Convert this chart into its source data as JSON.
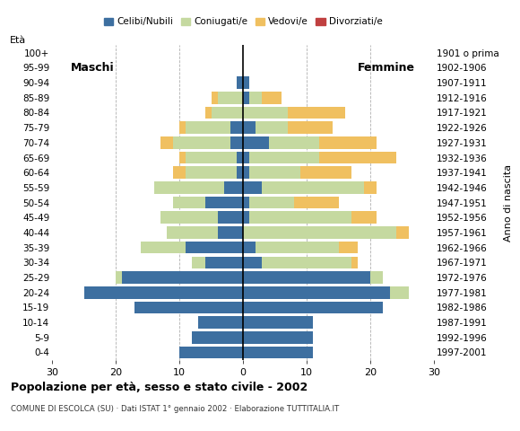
{
  "age_groups": [
    "0-4",
    "5-9",
    "10-14",
    "15-19",
    "20-24",
    "25-29",
    "30-34",
    "35-39",
    "40-44",
    "45-49",
    "50-54",
    "55-59",
    "60-64",
    "65-69",
    "70-74",
    "75-79",
    "80-84",
    "85-89",
    "90-94",
    "95-99",
    "100+"
  ],
  "birth_years": [
    "1997-2001",
    "1992-1996",
    "1987-1991",
    "1982-1986",
    "1977-1981",
    "1972-1976",
    "1967-1971",
    "1962-1966",
    "1957-1961",
    "1952-1956",
    "1947-1951",
    "1942-1946",
    "1937-1941",
    "1932-1936",
    "1927-1931",
    "1922-1926",
    "1917-1921",
    "1912-1916",
    "1907-1911",
    "1902-1906",
    "1901 o prima"
  ],
  "males": {
    "celibe": [
      10,
      8,
      7,
      17,
      25,
      19,
      6,
      9,
      4,
      4,
      6,
      3,
      1,
      1,
      2,
      2,
      0,
      0,
      1,
      0,
      0
    ],
    "coniugato": [
      0,
      0,
      0,
      0,
      0,
      1,
      2,
      7,
      8,
      9,
      5,
      11,
      8,
      8,
      9,
      7,
      5,
      4,
      0,
      0,
      0
    ],
    "vedovo": [
      0,
      0,
      0,
      0,
      0,
      0,
      0,
      0,
      0,
      0,
      0,
      0,
      2,
      1,
      2,
      1,
      1,
      1,
      0,
      0,
      0
    ],
    "divorziato": [
      0,
      0,
      0,
      0,
      0,
      0,
      0,
      0,
      0,
      0,
      0,
      0,
      0,
      0,
      0,
      0,
      0,
      0,
      0,
      0,
      0
    ]
  },
  "females": {
    "celibe": [
      11,
      11,
      11,
      22,
      23,
      20,
      3,
      2,
      0,
      1,
      1,
      3,
      1,
      1,
      4,
      2,
      0,
      1,
      1,
      0,
      0
    ],
    "coniugato": [
      0,
      0,
      0,
      0,
      3,
      2,
      14,
      13,
      24,
      16,
      7,
      16,
      8,
      11,
      8,
      5,
      7,
      2,
      0,
      0,
      0
    ],
    "vedovo": [
      0,
      0,
      0,
      0,
      0,
      0,
      1,
      3,
      2,
      4,
      7,
      2,
      8,
      12,
      9,
      7,
      9,
      3,
      0,
      0,
      0
    ],
    "divorziato": [
      0,
      0,
      0,
      0,
      0,
      0,
      0,
      0,
      0,
      0,
      0,
      0,
      0,
      0,
      0,
      0,
      0,
      0,
      0,
      0,
      0
    ]
  },
  "color_celibe": "#3d6fa0",
  "color_coniugato": "#c5d9a0",
  "color_vedovo": "#f0c060",
  "color_divorziato": "#c04040",
  "title": "Popolazione per età, sesso e stato civile - 2002",
  "subtitle": "COMUNE DI ESCOLCA (SU) · Dati ISTAT 1° gennaio 2002 · Elaborazione TUTTITALIA.IT",
  "xlabel_left": "Maschi",
  "xlabel_right": "Femmine",
  "ylabel": "Età",
  "ylabel_right": "Anno di nascita",
  "xlim": 30,
  "background_color": "#ffffff",
  "grid_color": "#b0b0b0"
}
